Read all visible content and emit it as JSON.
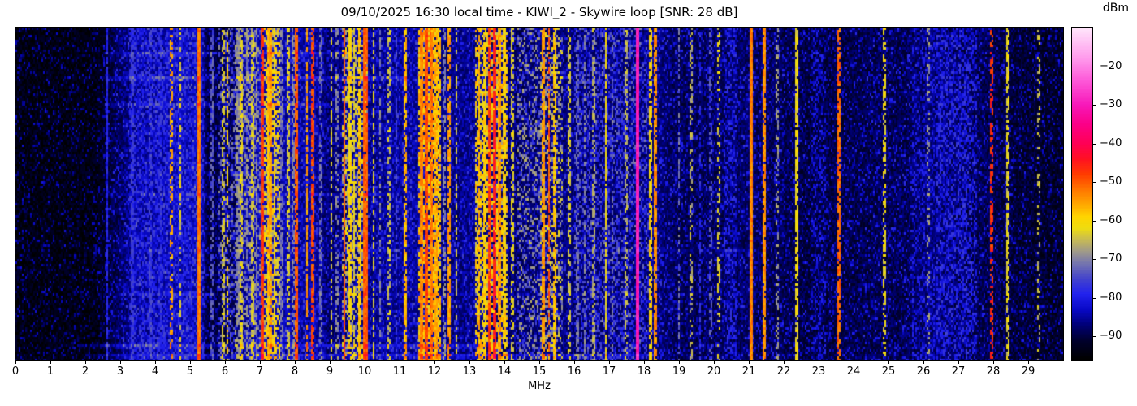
{
  "chart_data": {
    "type": "heatmap",
    "subtype": "radio-spectrum-waterfall",
    "title": "09/10/2025 16:30 local time - KIWI_2 - Skywire loop [SNR: 28 dB]",
    "station": "KIWI_2",
    "antenna": "Skywire loop",
    "snr_db": 28,
    "timestamp_label": "09/10/2025 16:30 local time",
    "xlabel": "MHz",
    "x_range": [
      0,
      30
    ],
    "x_ticks": [
      0,
      1,
      2,
      3,
      4,
      5,
      6,
      7,
      8,
      9,
      10,
      11,
      12,
      13,
      14,
      15,
      16,
      17,
      18,
      19,
      20,
      21,
      22,
      23,
      24,
      25,
      26,
      27,
      28,
      29
    ],
    "colorbar": {
      "label": "dBm",
      "ticks": [
        -20,
        -30,
        -40,
        -50,
        -60,
        -70,
        -80,
        -90
      ],
      "level_range": [
        -96,
        -10
      ],
      "position": "right"
    },
    "colormap": [
      [
        -96,
        "#000000"
      ],
      [
        -91,
        "#00002e"
      ],
      [
        -87,
        "#000078"
      ],
      [
        -83,
        "#0909c8"
      ],
      [
        -79,
        "#2222ee"
      ],
      [
        -75,
        "#4444cc"
      ],
      [
        -71,
        "#7777ad"
      ],
      [
        -68,
        "#9f9a8a"
      ],
      [
        -65,
        "#c6ba55"
      ],
      [
        -62,
        "#eedd10"
      ],
      [
        -59,
        "#ffd400"
      ],
      [
        -56,
        "#ffaa00"
      ],
      [
        -52,
        "#ff7700"
      ],
      [
        -48,
        "#ff3c00"
      ],
      [
        -44,
        "#ff1122"
      ],
      [
        -40,
        "#ff0055"
      ],
      [
        -35,
        "#fb0088"
      ],
      [
        -30,
        "#f718b9"
      ],
      [
        -24,
        "#fd55d7"
      ],
      [
        -18,
        "#ff99ec"
      ],
      [
        -10,
        "#ffe6fb"
      ]
    ],
    "noise_floor_dbm": [
      [
        0,
        -94
      ],
      [
        2.3,
        -94
      ],
      [
        2.9,
        -89
      ],
      [
        3.4,
        -85
      ],
      [
        4.3,
        -84
      ],
      [
        5.3,
        -83
      ],
      [
        5.5,
        -90
      ],
      [
        6.25,
        -89
      ],
      [
        6.45,
        -86
      ],
      [
        7.0,
        -84
      ],
      [
        8.6,
        -85
      ],
      [
        9.0,
        -88
      ],
      [
        9.4,
        -86
      ],
      [
        10.1,
        -86
      ],
      [
        11.4,
        -85
      ],
      [
        12.2,
        -87
      ],
      [
        13.1,
        -86
      ],
      [
        14.4,
        -88
      ],
      [
        15.0,
        -87
      ],
      [
        16.0,
        -87
      ],
      [
        18.4,
        -87
      ],
      [
        19.1,
        -89
      ],
      [
        21.0,
        -88
      ],
      [
        22.6,
        -90
      ],
      [
        25.5,
        -89
      ],
      [
        26.3,
        -87
      ],
      [
        27.6,
        -89
      ],
      [
        28.7,
        -91
      ],
      [
        30,
        -92
      ]
    ],
    "band_fields": [
      "f_start_mhz",
      "f_end_mhz",
      "level_dbm",
      "density"
    ],
    "bands": [
      [
        3.3,
        5.35,
        -81,
        0.45
      ],
      [
        5.85,
        6.25,
        -74,
        0.3
      ],
      [
        6.3,
        7.0,
        -71,
        0.4
      ],
      [
        7.15,
        7.55,
        -63,
        0.5
      ],
      [
        9.35,
        10.05,
        -66,
        0.45
      ],
      [
        11.55,
        12.15,
        -58,
        0.65
      ],
      [
        13.2,
        14.05,
        -61,
        0.55
      ],
      [
        14.4,
        15.05,
        -71,
        0.3
      ],
      [
        15.05,
        15.65,
        -67,
        0.35
      ],
      [
        16.0,
        18.1,
        -76,
        0.3
      ],
      [
        20.3,
        20.65,
        -82,
        0.5
      ],
      [
        22.8,
        23.2,
        -84,
        0.4
      ],
      [
        25.7,
        26.3,
        -84,
        0.4
      ],
      [
        26.4,
        27.5,
        -81,
        0.5
      ]
    ],
    "carrier_fields": [
      "freq_mhz",
      "width_mhz",
      "level_dbm",
      "duty"
    ],
    "carriers": [
      [
        2.62,
        0.03,
        -79,
        0.9
      ],
      [
        3.35,
        0.03,
        -77,
        0.7
      ],
      [
        3.85,
        0.03,
        -76,
        0.6
      ],
      [
        4.15,
        0.03,
        -78,
        0.5
      ],
      [
        4.47,
        0.03,
        -56,
        0.45
      ],
      [
        4.72,
        0.03,
        -63,
        0.55
      ],
      [
        5.27,
        0.05,
        -52,
        1
      ],
      [
        5.62,
        0.03,
        -74,
        0.6
      ],
      [
        5.95,
        0.03,
        -64,
        0.5
      ],
      [
        6.07,
        0.03,
        -59,
        0.55
      ],
      [
        6.37,
        0.03,
        -70,
        0.65
      ],
      [
        6.48,
        0.03,
        -63,
        0.65
      ],
      [
        6.62,
        0.03,
        -70,
        0.6
      ],
      [
        6.78,
        0.03,
        -64,
        0.65
      ],
      [
        6.9,
        0.03,
        -71,
        0.6
      ],
      [
        7.08,
        0.05,
        -48,
        0.9
      ],
      [
        7.24,
        0.05,
        -58,
        0.85
      ],
      [
        7.32,
        0.04,
        -55,
        0.8
      ],
      [
        7.42,
        0.04,
        -60,
        0.75
      ],
      [
        7.62,
        0.03,
        -71,
        0.65
      ],
      [
        7.8,
        0.03,
        -64,
        0.6
      ],
      [
        7.94,
        0.03,
        -70,
        0.55
      ],
      [
        8.05,
        0.04,
        -50,
        0.85
      ],
      [
        8.35,
        0.04,
        -55,
        0.8
      ],
      [
        8.5,
        0.04,
        -49,
        0.8
      ],
      [
        8.75,
        0.03,
        -72,
        0.55
      ],
      [
        9.05,
        0.03,
        -64,
        0.6
      ],
      [
        9.2,
        0.03,
        -70,
        0.5
      ],
      [
        9.42,
        0.04,
        -50,
        0.85
      ],
      [
        9.58,
        0.04,
        -60,
        0.75
      ],
      [
        9.7,
        0.04,
        -63,
        0.75
      ],
      [
        9.88,
        0.04,
        -58,
        0.75
      ],
      [
        10.02,
        0.07,
        -50,
        0.95
      ],
      [
        10.25,
        0.03,
        -63,
        0.65
      ],
      [
        10.45,
        0.03,
        -70,
        0.55
      ],
      [
        10.7,
        0.03,
        -65,
        0.5
      ],
      [
        10.9,
        0.03,
        -76,
        0.5
      ],
      [
        11.15,
        0.04,
        -57,
        0.7
      ],
      [
        11.62,
        0.05,
        -53,
        0.95
      ],
      [
        11.78,
        0.05,
        -49,
        0.95
      ],
      [
        11.92,
        0.05,
        -52,
        0.9
      ],
      [
        12.05,
        0.04,
        -57,
        0.85
      ],
      [
        12.28,
        0.03,
        -70,
        0.55
      ],
      [
        12.43,
        0.04,
        -55,
        0.7
      ],
      [
        12.62,
        0.03,
        -64,
        0.55
      ],
      [
        13.28,
        0.04,
        -57,
        0.85
      ],
      [
        13.45,
        0.04,
        -60,
        0.8
      ],
      [
        13.58,
        0.05,
        -48,
        0.9
      ],
      [
        13.7,
        0.05,
        -45,
        0.9
      ],
      [
        13.88,
        0.04,
        -55,
        0.85
      ],
      [
        14.0,
        0.04,
        -60,
        0.75
      ],
      [
        14.22,
        0.03,
        -63,
        0.55
      ],
      [
        15.12,
        0.04,
        -55,
        0.8
      ],
      [
        15.28,
        0.04,
        -50,
        0.8
      ],
      [
        15.45,
        0.04,
        -58,
        0.7
      ],
      [
        15.85,
        0.03,
        -64,
        0.5
      ],
      [
        16.1,
        0.03,
        -72,
        0.5
      ],
      [
        16.3,
        0.03,
        -70,
        0.5
      ],
      [
        16.55,
        0.03,
        -66,
        0.5
      ],
      [
        16.9,
        0.03,
        -62,
        0.85
      ],
      [
        17.1,
        0.03,
        -72,
        0.45
      ],
      [
        17.48,
        0.03,
        -66,
        0.5
      ],
      [
        17.82,
        0.05,
        -30,
        1
      ],
      [
        18.2,
        0.03,
        -60,
        0.7
      ],
      [
        18.32,
        0.03,
        -54,
        0.8
      ],
      [
        19.0,
        0.03,
        -72,
        0.5
      ],
      [
        19.35,
        0.03,
        -66,
        0.4
      ],
      [
        19.6,
        0.03,
        -78,
        0.5
      ],
      [
        19.9,
        0.03,
        -74,
        0.4
      ],
      [
        20.15,
        0.03,
        -63,
        0.3
      ],
      [
        21.08,
        0.06,
        -53,
        1
      ],
      [
        21.45,
        0.04,
        -54,
        0.9
      ],
      [
        21.8,
        0.03,
        -68,
        0.4
      ],
      [
        22.37,
        0.03,
        -62,
        0.8
      ],
      [
        23.56,
        0.05,
        -51,
        0.8
      ],
      [
        24.88,
        0.03,
        -62,
        0.5
      ],
      [
        26.13,
        0.03,
        -68,
        0.3
      ],
      [
        27.94,
        0.04,
        -47,
        0.55
      ],
      [
        28.42,
        0.03,
        -63,
        0.7
      ],
      [
        29.3,
        0.03,
        -65,
        0.25
      ]
    ],
    "streak_fields": [
      "time_fraction",
      "f_start_mhz",
      "f_end_mhz",
      "gain_db"
    ],
    "streaks": [
      [
        0.076,
        2.5,
        9.5,
        4
      ],
      [
        0.149,
        2.5,
        11.2,
        5
      ],
      [
        0.23,
        2.5,
        9.0,
        4
      ],
      [
        0.5,
        2.4,
        10.5,
        3
      ],
      [
        0.67,
        2.0,
        21.0,
        2
      ],
      [
        0.8,
        2.0,
        21.0,
        2
      ],
      [
        0.954,
        1.8,
        13.5,
        5
      ],
      [
        0.985,
        2.0,
        18.0,
        5
      ]
    ]
  }
}
